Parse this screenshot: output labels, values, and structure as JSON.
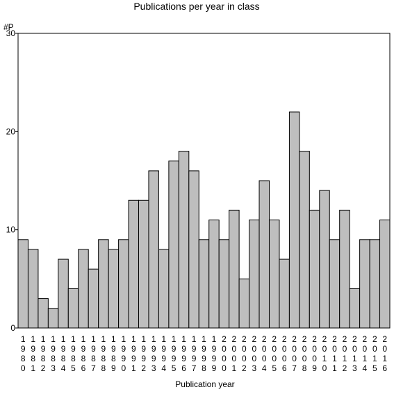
{
  "chart_data": {
    "type": "bar",
    "title": "Publications per year in class",
    "ylabel": "#P",
    "xlabel": "Publication year",
    "ylim": [
      0,
      30
    ],
    "yticks": [
      0,
      10,
      20,
      30
    ],
    "categories": [
      "1980",
      "1981",
      "1982",
      "1983",
      "1984",
      "1985",
      "1986",
      "1987",
      "1988",
      "1989",
      "1990",
      "1991",
      "1992",
      "1993",
      "1994",
      "1995",
      "1996",
      "1997",
      "1998",
      "1999",
      "2000",
      "2001",
      "2002",
      "2003",
      "2004",
      "2005",
      "2006",
      "2007",
      "2008",
      "2009",
      "2010",
      "2011",
      "2012",
      "2013",
      "2014",
      "2015",
      "2016"
    ],
    "values": [
      9,
      8,
      3,
      2,
      7,
      4,
      8,
      6,
      9,
      8,
      9,
      13,
      13,
      16,
      8,
      17,
      18,
      16,
      9,
      11,
      9,
      12,
      5,
      11,
      15,
      11,
      7,
      22,
      18,
      12,
      14,
      9,
      12,
      4,
      9,
      9,
      11
    ],
    "bar_color": "#bebebe",
    "grid": false
  }
}
